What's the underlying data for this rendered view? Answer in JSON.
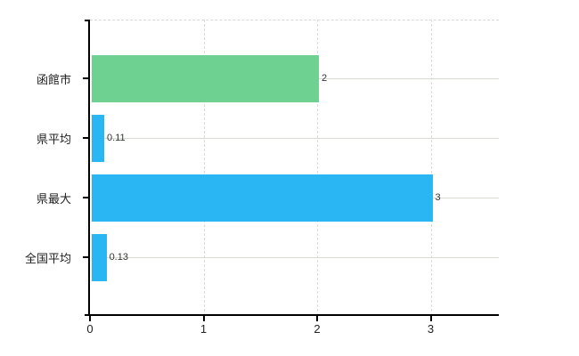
{
  "chart_data": {
    "type": "bar",
    "orientation": "horizontal",
    "title": "",
    "categories": [
      "函館市",
      "県平均",
      "県最大",
      "全国平均"
    ],
    "values": [
      2,
      0.11,
      3,
      0.13
    ],
    "value_labels": [
      "2",
      "0.11",
      "3",
      "0.13"
    ],
    "bar_colors": [
      "#6fd191",
      "#29b6f3",
      "#29b6f3",
      "#29b6f3"
    ],
    "xlim": [
      0,
      3.6
    ],
    "x_tick_labels": [
      "0",
      "1",
      "2",
      "3"
    ],
    "x_tick_values": [
      0,
      1,
      2,
      3
    ],
    "grid": true,
    "legend": false
  },
  "colors": {
    "bar_green": "#6fd191",
    "bar_blue": "#29b6f3",
    "grid_horizontal": "#d7dcd2",
    "grid_vertical": "#d9d9e0",
    "axis": "#000000",
    "category_text": "#222222",
    "value_text": "#333333",
    "background": "#ffffff"
  }
}
